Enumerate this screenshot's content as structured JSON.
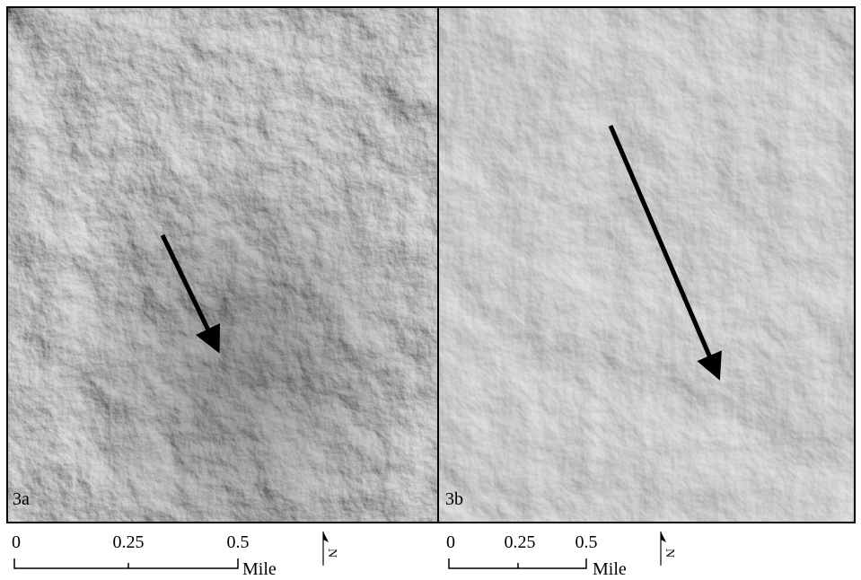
{
  "panels": [
    {
      "label": "3a",
      "scale_bar": {
        "ticks": [
          "0",
          "0.25",
          "0.5"
        ],
        "unit": "Mile"
      },
      "north": "N"
    },
    {
      "label": "3b",
      "scale_bar": {
        "ticks": [
          "0",
          "0.25",
          "0.5"
        ],
        "unit": "Mile"
      },
      "north": "N"
    }
  ]
}
